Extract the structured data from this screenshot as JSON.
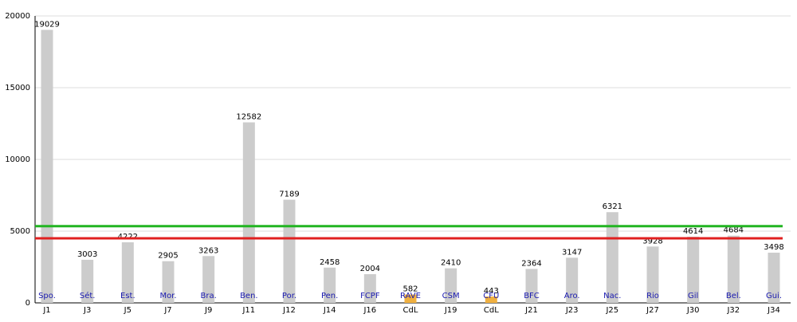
{
  "chart_data": {
    "type": "bar",
    "categories": [
      "J1",
      "J3",
      "J5",
      "J7",
      "J9",
      "J11",
      "J12",
      "J14",
      "J16",
      "CdL",
      "J19",
      "CdL",
      "J21",
      "J23",
      "J25",
      "J27",
      "J30",
      "J32",
      "J34"
    ],
    "opponents": [
      "Spo.",
      "Sét.",
      "Est.",
      "Mor.",
      "Bra.",
      "Ben.",
      "Por.",
      "Pen.",
      "FCPF",
      "RAVE",
      "CSM",
      "CFU",
      "BFC",
      "Aro.",
      "Nac.",
      "Rio",
      "Gil",
      "Bel.",
      "Gui."
    ],
    "values": [
      19029,
      3003,
      4222,
      2905,
      3263,
      12582,
      7189,
      2458,
      2004,
      582,
      2410,
      443,
      2364,
      3147,
      6321,
      3928,
      4614,
      4684,
      3498
    ],
    "colors": [
      "#cccccc",
      "#cccccc",
      "#cccccc",
      "#cccccc",
      "#cccccc",
      "#cccccc",
      "#cccccc",
      "#cccccc",
      "#cccccc",
      "#f0b040",
      "#cccccc",
      "#f0b040",
      "#cccccc",
      "#cccccc",
      "#cccccc",
      "#cccccc",
      "#cccccc",
      "#cccccc",
      "#cccccc"
    ],
    "reference_lines": [
      {
        "value": 5350,
        "color": "#22b522"
      },
      {
        "value": 4500,
        "color": "#e02020"
      }
    ],
    "ylim": [
      0,
      20000
    ],
    "yticks": [
      0,
      5000,
      10000,
      15000,
      20000
    ],
    "grid": true
  }
}
